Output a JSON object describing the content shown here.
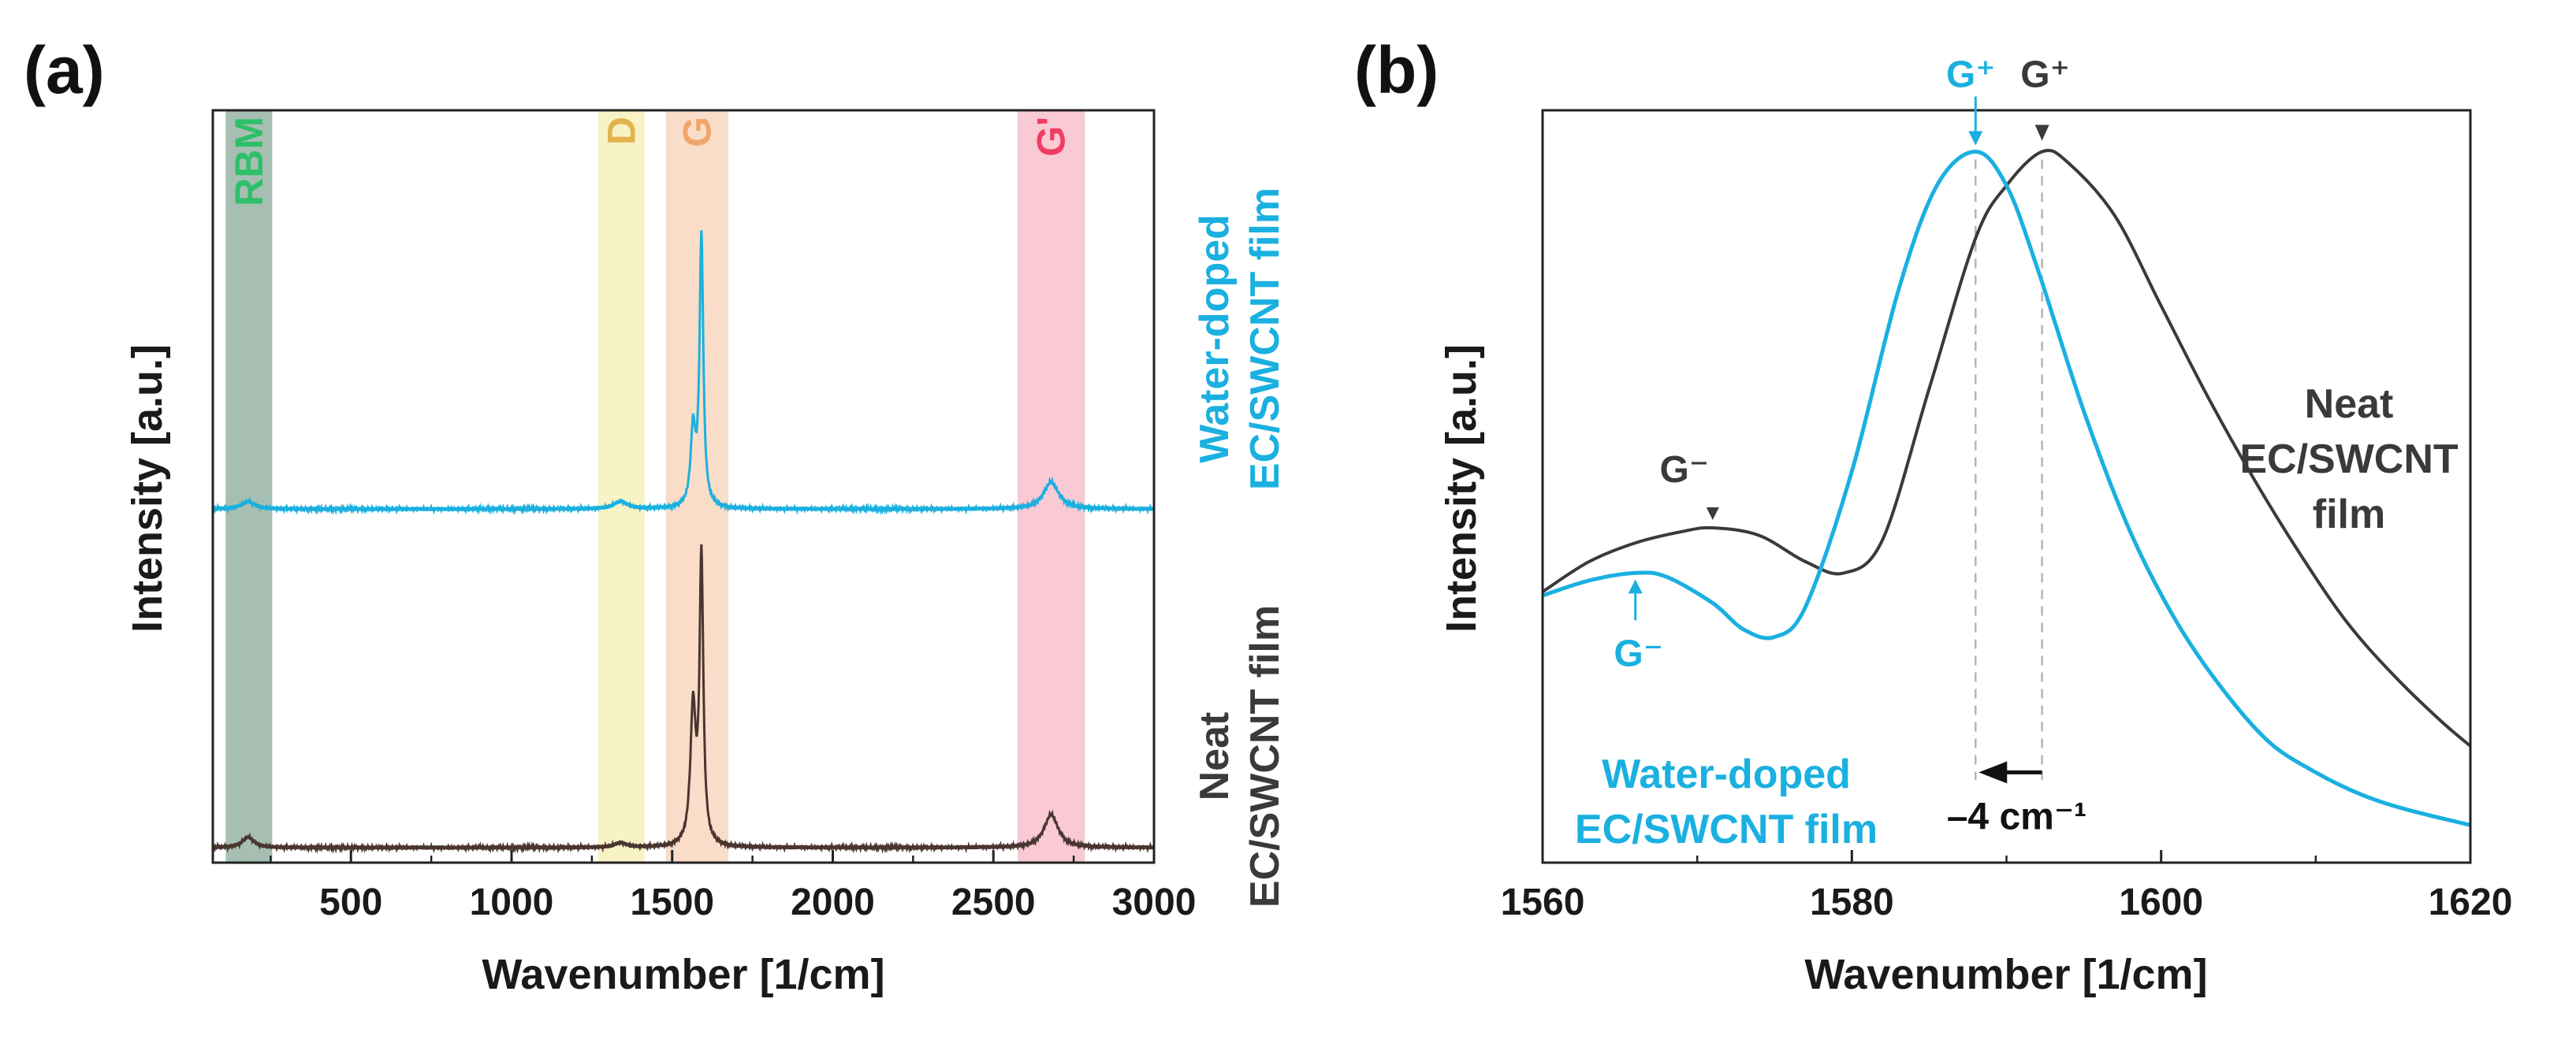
{
  "colors": {
    "water": "#1ab0e0",
    "neat": "#3a3a3a",
    "neat_a": "#4a3530",
    "rbm": "#2fbf6a",
    "d": "#e3b34c",
    "g": "#f0a56a",
    "gprime": "#f03c64",
    "rbm_band": "#5f8a73",
    "d_band": "#f2eb9f",
    "g_band": "#f6c7a3",
    "gprime_band": "#f5a5b8"
  },
  "panel_a": {
    "letter": "(a)",
    "ylabel": "Intensity [a.u.]",
    "xlabel": "Wavenumber [1/cm]",
    "water_label": [
      "Water-doped",
      "EC/SWCNT film"
    ],
    "neat_label": [
      "Neat",
      "EC/SWCNT film"
    ]
  },
  "panel_b": {
    "letter": "(b)",
    "ylabel": "Intensity [a.u.]",
    "xlabel": "Wavenumber [1/cm]",
    "gplus_water": "G⁺",
    "gplus_neat": "G⁺",
    "gminus_neat": "G⁻",
    "gminus_water": "G⁻",
    "shift_label": "–4 cm⁻¹",
    "neat_label": [
      "Neat",
      "EC/SWCNT",
      "film"
    ],
    "water_label": [
      "Water-doped",
      "EC/SWCNT film"
    ]
  },
  "chart_data": [
    {
      "type": "line",
      "title": "",
      "xlabel": "Wavenumber [1/cm]",
      "ylabel": "Intensity [a.u.]",
      "xlim": [
        70,
        3000
      ],
      "ylim": [
        0,
        1
      ],
      "grid": false,
      "xticks": [
        500,
        1000,
        1500,
        2000,
        2500,
        3000
      ],
      "bands": [
        {
          "name": "RBM",
          "from": 110,
          "to": 255
        },
        {
          "name": "D",
          "from": 1270,
          "to": 1415
        },
        {
          "name": "G",
          "from": 1480,
          "to": 1675
        },
        {
          "name": "G'",
          "from": 2575,
          "to": 2785
        }
      ],
      "series": [
        {
          "name": "Water-doped EC/SWCNT film",
          "offset": 0.47,
          "peaks": [
            {
              "x": 180,
              "h": 0.01,
              "w": 25
            },
            {
              "x": 1340,
              "h": 0.01,
              "w": 25
            },
            {
              "x": 1565,
              "h": 0.1,
              "w": 9
            },
            {
              "x": 1591,
              "h": 0.36,
              "w": 7
            },
            {
              "x": 2680,
              "h": 0.036,
              "w": 28
            }
          ]
        },
        {
          "name": "Neat EC/SWCNT film",
          "offset": 0.02,
          "peaks": [
            {
              "x": 180,
              "h": 0.014,
              "w": 22
            },
            {
              "x": 1340,
              "h": 0.006,
              "w": 22
            },
            {
              "x": 1565,
              "h": 0.18,
              "w": 10
            },
            {
              "x": 1591,
              "h": 0.38,
              "w": 7
            },
            {
              "x": 2680,
              "h": 0.044,
              "w": 26
            }
          ]
        }
      ]
    },
    {
      "type": "line",
      "title": "",
      "xlabel": "Wavenumber [1/cm]",
      "ylabel": "Intensity [a.u.]",
      "xlim": [
        1560,
        1620
      ],
      "ylim": [
        0,
        1
      ],
      "grid": false,
      "xticks": [
        1560,
        1580,
        1600,
        1620
      ],
      "series": [
        {
          "name": "Neat EC/SWCNT film",
          "x": [
            1560,
            1563,
            1566,
            1569,
            1571,
            1574,
            1577,
            1579.5,
            1582,
            1585,
            1588,
            1590,
            1592.3,
            1594,
            1597,
            1600,
            1603,
            1606,
            1609,
            1612,
            1615,
            1618,
            1620
          ],
          "y": [
            0.36,
            0.4,
            0.425,
            0.44,
            0.445,
            0.435,
            0.4,
            0.385,
            0.43,
            0.63,
            0.83,
            0.9,
            0.945,
            0.93,
            0.86,
            0.74,
            0.62,
            0.51,
            0.41,
            0.32,
            0.25,
            0.19,
            0.155
          ]
        },
        {
          "name": "Water-doped EC/SWCNT film",
          "x": [
            1560,
            1563,
            1566,
            1568,
            1571,
            1573,
            1575,
            1577,
            1580,
            1583,
            1585.5,
            1588,
            1590,
            1592,
            1595,
            1598,
            1601,
            1604,
            1607,
            1610,
            1613,
            1616,
            1620
          ],
          "y": [
            0.355,
            0.375,
            0.385,
            0.38,
            0.345,
            0.31,
            0.3,
            0.34,
            0.52,
            0.76,
            0.9,
            0.945,
            0.9,
            0.79,
            0.6,
            0.44,
            0.32,
            0.23,
            0.16,
            0.12,
            0.09,
            0.07,
            0.05
          ]
        }
      ],
      "annotations": [
        {
          "text": "G⁺",
          "x": 1588,
          "series": "Water-doped EC/SWCNT film"
        },
        {
          "text": "G⁺",
          "x": 1592.3,
          "series": "Neat EC/SWCNT film"
        },
        {
          "text": "G⁻",
          "x": 1571,
          "series": "Neat EC/SWCNT film"
        },
        {
          "text": "G⁻",
          "x": 1566,
          "series": "Water-doped EC/SWCNT film"
        },
        {
          "text": "–4 cm⁻¹",
          "from": 1592.3,
          "to": 1588
        }
      ]
    }
  ]
}
